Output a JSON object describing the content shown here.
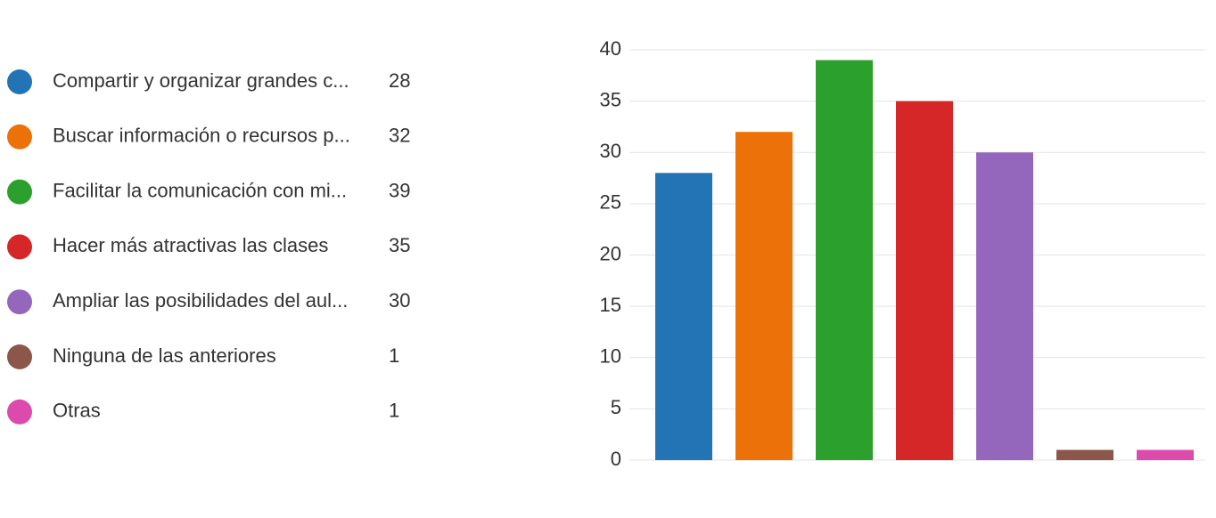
{
  "chart_data": {
    "type": "bar",
    "categories": [
      "Compartir y organizar grandes c...",
      "Buscar información o recursos p...",
      "Facilitar la comunicación con mi...",
      "Hacer más atractivas las clases",
      "Ampliar las posibilidades del aul...",
      "Ninguna de las anteriores",
      "Otras"
    ],
    "values": [
      28,
      32,
      39,
      35,
      30,
      1,
      1
    ],
    "colors": [
      "#2274b4",
      "#ec7108",
      "#2ca02c",
      "#d62728",
      "#9467bd",
      "#8c564b",
      "#dc4aac"
    ],
    "ylim": [
      0,
      40
    ],
    "yticks": [
      0,
      5,
      10,
      15,
      20,
      25,
      30,
      35,
      40
    ],
    "grid": true
  }
}
